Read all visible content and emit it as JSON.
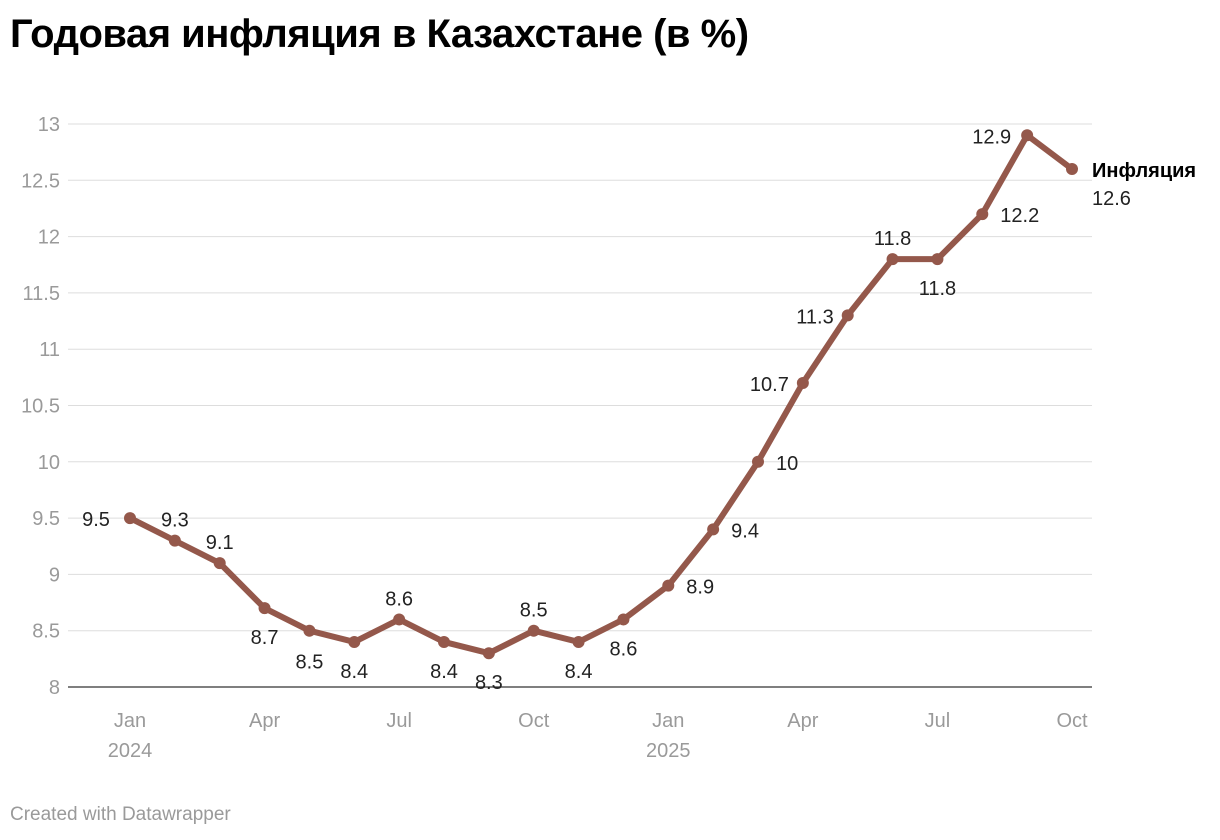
{
  "title": "Годовая инфляция в Казахстане  (в %)",
  "credit": "Created with Datawrapper",
  "colors": {
    "line": "#94584b",
    "grid": "#dddddd",
    "tick_text": "#9a9a9a",
    "label_text": "#222222"
  },
  "chart_data": {
    "type": "line",
    "title": "Годовая инфляция в Казахстане  (в %)",
    "xlabel": "",
    "ylabel": "",
    "ylim": [
      8,
      13
    ],
    "yticks": [
      "13",
      "12.5",
      "12",
      "11.5",
      "11",
      "10.5",
      "10",
      "9.5",
      "9",
      "8.5",
      "8"
    ],
    "grid": true,
    "x": [
      "2024-01",
      "2024-02",
      "2024-03",
      "2024-04",
      "2024-05",
      "2024-06",
      "2024-07",
      "2024-08",
      "2024-09",
      "2024-10",
      "2024-11",
      "2024-12",
      "2025-01",
      "2025-02",
      "2025-03",
      "2025-04",
      "2025-05",
      "2025-06",
      "2025-07",
      "2025-08",
      "2025-09",
      "2025-10"
    ],
    "xticks": [
      {
        "line1": "Jan",
        "line2": "2024"
      },
      {
        "line1": "Apr",
        "line2": ""
      },
      {
        "line1": "Jul",
        "line2": ""
      },
      {
        "line1": "Oct",
        "line2": ""
      },
      {
        "line1": "Jan",
        "line2": "2025"
      },
      {
        "line1": "Apr",
        "line2": ""
      },
      {
        "line1": "Jul",
        "line2": ""
      },
      {
        "line1": "Oct",
        "line2": ""
      }
    ],
    "series": [
      {
        "name": "Инфляция",
        "color": "#94584b",
        "values": [
          9.5,
          9.3,
          9.1,
          8.7,
          8.5,
          8.4,
          8.6,
          8.4,
          8.3,
          8.5,
          8.4,
          8.6,
          8.9,
          9.4,
          10,
          10.7,
          11.3,
          11.8,
          11.8,
          12.2,
          12.9,
          12.6
        ],
        "labels": [
          "9.5",
          "9.3",
          "9.1",
          "8.7",
          "8.5",
          "8.4",
          "8.6",
          "8.4",
          "8.3",
          "8.5",
          "8.4",
          "8.6",
          "8.9",
          "9.4",
          "10",
          "10.7",
          "11.3",
          "11.8",
          "11.8",
          "12.2",
          "12.9",
          "12.6"
        ]
      }
    ]
  }
}
